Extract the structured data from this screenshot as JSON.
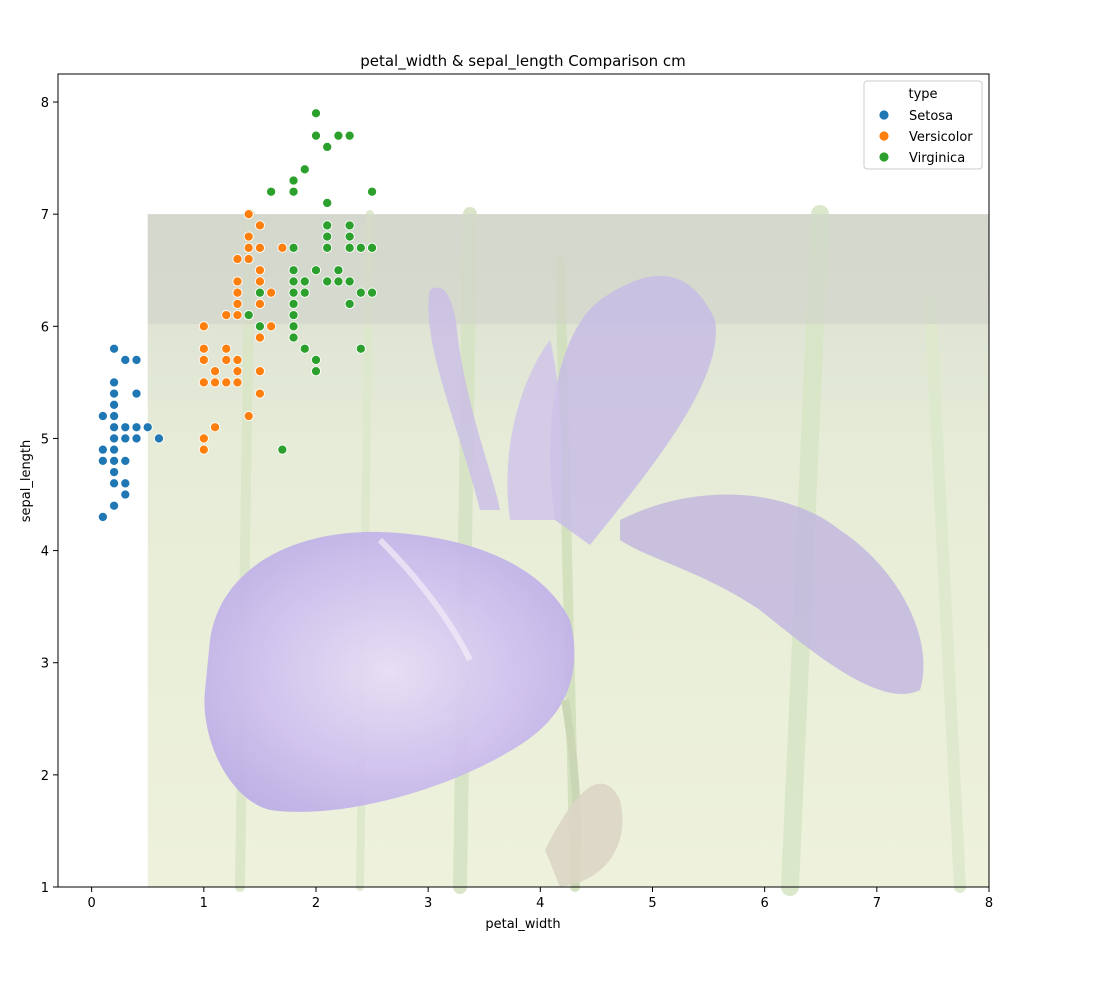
{
  "chart_data": {
    "type": "scatter",
    "title": "petal_width & sepal_length Comparison cm",
    "xlabel": "petal_width",
    "ylabel": "sepal_length",
    "xlim": [
      -0.3,
      8
    ],
    "ylim": [
      1,
      8.25
    ],
    "xticks": [
      0,
      1,
      2,
      3,
      4,
      5,
      6,
      7,
      8
    ],
    "yticks": [
      1,
      2,
      3,
      4,
      5,
      6,
      7,
      8
    ],
    "grid": false,
    "background_image": {
      "description": "faded purple iris flower photo",
      "x_range": [
        0.5,
        8
      ],
      "y_range": [
        1,
        7
      ]
    },
    "legend": {
      "title": "type",
      "position": "top-right"
    },
    "series": [
      {
        "name": "Setosa",
        "color": "#1f77b4",
        "points": [
          [
            0.1,
            4.3
          ],
          [
            0.1,
            4.8
          ],
          [
            0.1,
            4.9
          ],
          [
            0.1,
            5.2
          ],
          [
            0.2,
            4.4
          ],
          [
            0.2,
            4.6
          ],
          [
            0.2,
            4.7
          ],
          [
            0.2,
            4.8
          ],
          [
            0.2,
            4.9
          ],
          [
            0.2,
            5.0
          ],
          [
            0.2,
            5.1
          ],
          [
            0.2,
            5.2
          ],
          [
            0.2,
            5.3
          ],
          [
            0.2,
            5.4
          ],
          [
            0.2,
            5.5
          ],
          [
            0.2,
            5.8
          ],
          [
            0.3,
            4.5
          ],
          [
            0.3,
            4.6
          ],
          [
            0.3,
            4.8
          ],
          [
            0.3,
            5.0
          ],
          [
            0.3,
            5.1
          ],
          [
            0.3,
            5.7
          ],
          [
            0.4,
            5.0
          ],
          [
            0.4,
            5.1
          ],
          [
            0.4,
            5.4
          ],
          [
            0.4,
            5.7
          ],
          [
            0.5,
            5.1
          ],
          [
            0.6,
            5.0
          ]
        ]
      },
      {
        "name": "Versicolor",
        "color": "#ff7f0e",
        "points": [
          [
            1.0,
            4.9
          ],
          [
            1.0,
            5.0
          ],
          [
            1.0,
            5.5
          ],
          [
            1.0,
            5.7
          ],
          [
            1.0,
            5.8
          ],
          [
            1.0,
            6.0
          ],
          [
            1.1,
            5.1
          ],
          [
            1.1,
            5.5
          ],
          [
            1.1,
            5.6
          ],
          [
            1.2,
            5.5
          ],
          [
            1.2,
            5.7
          ],
          [
            1.2,
            5.8
          ],
          [
            1.2,
            6.1
          ],
          [
            1.3,
            5.5
          ],
          [
            1.3,
            5.6
          ],
          [
            1.3,
            5.7
          ],
          [
            1.3,
            6.1
          ],
          [
            1.3,
            6.2
          ],
          [
            1.3,
            6.3
          ],
          [
            1.3,
            6.4
          ],
          [
            1.3,
            6.6
          ],
          [
            1.4,
            5.2
          ],
          [
            1.4,
            6.1
          ],
          [
            1.4,
            6.6
          ],
          [
            1.4,
            6.7
          ],
          [
            1.4,
            6.8
          ],
          [
            1.4,
            7.0
          ],
          [
            1.5,
            5.4
          ],
          [
            1.5,
            5.6
          ],
          [
            1.5,
            5.9
          ],
          [
            1.5,
            6.2
          ],
          [
            1.5,
            6.3
          ],
          [
            1.5,
            6.4
          ],
          [
            1.5,
            6.5
          ],
          [
            1.5,
            6.7
          ],
          [
            1.5,
            6.9
          ],
          [
            1.6,
            6.0
          ],
          [
            1.6,
            6.3
          ],
          [
            1.7,
            6.7
          ]
        ]
      },
      {
        "name": "Virginica",
        "color": "#2ca02c",
        "points": [
          [
            1.4,
            6.1
          ],
          [
            1.5,
            6.0
          ],
          [
            1.5,
            6.3
          ],
          [
            1.6,
            7.2
          ],
          [
            1.7,
            4.9
          ],
          [
            1.8,
            5.9
          ],
          [
            1.8,
            6.0
          ],
          [
            1.8,
            6.1
          ],
          [
            1.8,
            6.2
          ],
          [
            1.8,
            6.3
          ],
          [
            1.8,
            6.4
          ],
          [
            1.8,
            6.5
          ],
          [
            1.8,
            6.7
          ],
          [
            1.8,
            7.2
          ],
          [
            1.8,
            7.3
          ],
          [
            1.9,
            5.8
          ],
          [
            1.9,
            6.3
          ],
          [
            1.9,
            6.4
          ],
          [
            1.9,
            7.4
          ],
          [
            2.0,
            5.6
          ],
          [
            2.0,
            5.7
          ],
          [
            2.0,
            6.5
          ],
          [
            2.0,
            7.7
          ],
          [
            2.0,
            7.9
          ],
          [
            2.1,
            6.4
          ],
          [
            2.1,
            6.7
          ],
          [
            2.1,
            6.8
          ],
          [
            2.1,
            6.9
          ],
          [
            2.1,
            7.1
          ],
          [
            2.1,
            7.6
          ],
          [
            2.2,
            6.4
          ],
          [
            2.2,
            6.5
          ],
          [
            2.2,
            7.7
          ],
          [
            2.3,
            6.2
          ],
          [
            2.3,
            6.4
          ],
          [
            2.3,
            6.7
          ],
          [
            2.3,
            6.8
          ],
          [
            2.3,
            6.9
          ],
          [
            2.3,
            7.7
          ],
          [
            2.4,
            5.8
          ],
          [
            2.4,
            6.3
          ],
          [
            2.4,
            6.7
          ],
          [
            2.5,
            6.3
          ],
          [
            2.5,
            6.7
          ],
          [
            2.5,
            7.2
          ]
        ]
      }
    ]
  }
}
